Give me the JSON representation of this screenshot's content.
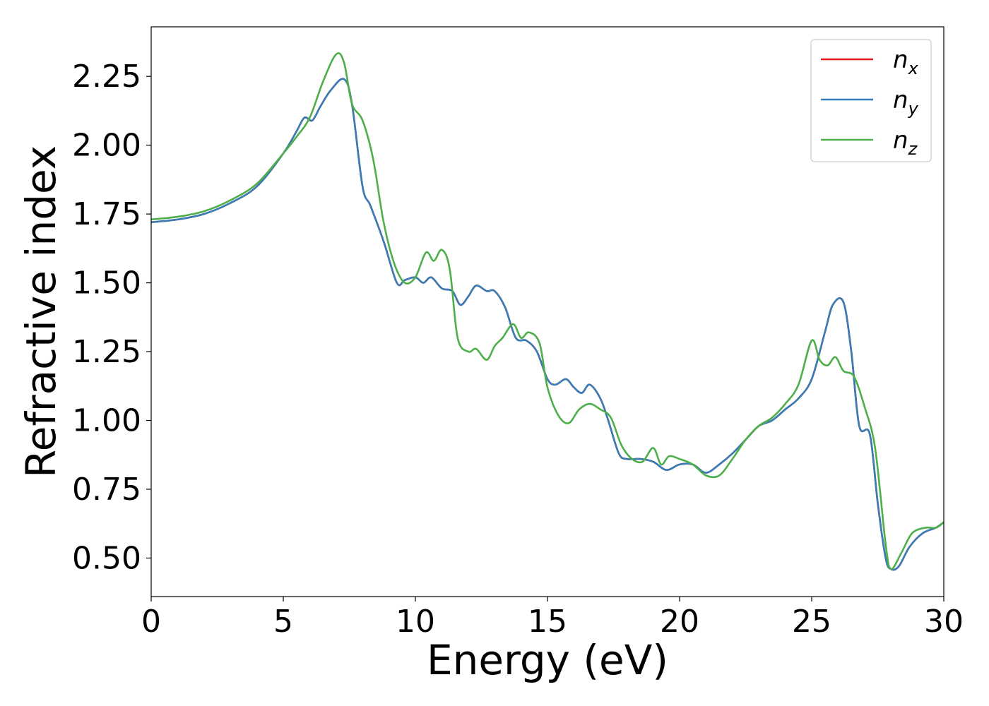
{
  "chart_data": {
    "type": "line",
    "title": "",
    "xlabel": "Energy (eV)",
    "ylabel": "Refractive index",
    "xlim": [
      0,
      30
    ],
    "ylim": [
      0.36,
      2.43
    ],
    "grid": false,
    "legend_position": "top-right",
    "x_ticks": [
      0,
      5,
      10,
      15,
      20,
      25,
      30
    ],
    "x_tick_labels": [
      "0",
      "5",
      "10",
      "15",
      "20",
      "25",
      "30"
    ],
    "y_ticks": [
      0.5,
      0.75,
      1.0,
      1.25,
      1.5,
      1.75,
      2.0,
      2.25
    ],
    "y_tick_labels": [
      "0.50",
      "0.75",
      "1.00",
      "1.25",
      "1.50",
      "1.75",
      "2.00",
      "2.25"
    ],
    "series": [
      {
        "name": "n",
        "subscript": "x",
        "color": "#e41a1c",
        "x": [
          0,
          1,
          2,
          3,
          4,
          5,
          5.5,
          5.8,
          6.1,
          6.4,
          6.8,
          7.3,
          7.6,
          8.0,
          8.3,
          8.8,
          9.3,
          9.6,
          10.0,
          10.3,
          10.6,
          11.0,
          11.4,
          11.7,
          12.0,
          12.3,
          12.7,
          13.0,
          13.4,
          13.8,
          14.2,
          14.6,
          15.0,
          15.3,
          15.7,
          16.0,
          16.3,
          16.6,
          17.0,
          17.3,
          17.7,
          18.0,
          18.5,
          19.0,
          19.5,
          20.0,
          20.5,
          21.0,
          21.5,
          22.0,
          22.5,
          23.0,
          23.5,
          24.0,
          24.5,
          25.0,
          25.5,
          25.8,
          26.2,
          26.5,
          26.8,
          27.2,
          27.5,
          27.8,
          28.0,
          28.3,
          28.7,
          29.2,
          29.7,
          30.0
        ],
        "values": [
          1.72,
          1.73,
          1.75,
          1.79,
          1.85,
          1.97,
          2.05,
          2.1,
          2.09,
          2.14,
          2.2,
          2.24,
          2.15,
          1.85,
          1.78,
          1.65,
          1.5,
          1.51,
          1.52,
          1.5,
          1.52,
          1.48,
          1.47,
          1.42,
          1.45,
          1.49,
          1.47,
          1.47,
          1.41,
          1.3,
          1.29,
          1.25,
          1.15,
          1.13,
          1.15,
          1.12,
          1.1,
          1.13,
          1.08,
          1.0,
          0.88,
          0.86,
          0.86,
          0.85,
          0.82,
          0.84,
          0.84,
          0.81,
          0.84,
          0.88,
          0.93,
          0.98,
          1.0,
          1.04,
          1.08,
          1.15,
          1.32,
          1.42,
          1.43,
          1.25,
          0.98,
          0.95,
          0.7,
          0.5,
          0.46,
          0.47,
          0.54,
          0.59,
          0.61,
          0.63
        ]
      },
      {
        "name": "n",
        "subscript": "y",
        "color": "#377eb8",
        "x": [
          0,
          1,
          2,
          3,
          4,
          5,
          5.5,
          5.8,
          6.1,
          6.4,
          6.8,
          7.3,
          7.6,
          8.0,
          8.3,
          8.8,
          9.3,
          9.6,
          10.0,
          10.3,
          10.6,
          11.0,
          11.4,
          11.7,
          12.0,
          12.3,
          12.7,
          13.0,
          13.4,
          13.8,
          14.2,
          14.6,
          15.0,
          15.3,
          15.7,
          16.0,
          16.3,
          16.6,
          17.0,
          17.3,
          17.7,
          18.0,
          18.5,
          19.0,
          19.5,
          20.0,
          20.5,
          21.0,
          21.5,
          22.0,
          22.5,
          23.0,
          23.5,
          24.0,
          24.5,
          25.0,
          25.5,
          25.8,
          26.2,
          26.5,
          26.8,
          27.2,
          27.5,
          27.8,
          28.0,
          28.3,
          28.7,
          29.2,
          29.7,
          30.0
        ],
        "values": [
          1.72,
          1.73,
          1.75,
          1.79,
          1.85,
          1.97,
          2.05,
          2.1,
          2.09,
          2.14,
          2.2,
          2.24,
          2.15,
          1.85,
          1.78,
          1.65,
          1.5,
          1.51,
          1.52,
          1.5,
          1.52,
          1.48,
          1.47,
          1.42,
          1.45,
          1.49,
          1.47,
          1.47,
          1.41,
          1.3,
          1.29,
          1.25,
          1.15,
          1.13,
          1.15,
          1.12,
          1.1,
          1.13,
          1.08,
          1.0,
          0.88,
          0.86,
          0.86,
          0.85,
          0.82,
          0.84,
          0.84,
          0.81,
          0.84,
          0.88,
          0.93,
          0.98,
          1.0,
          1.04,
          1.08,
          1.15,
          1.32,
          1.42,
          1.43,
          1.25,
          0.98,
          0.95,
          0.7,
          0.5,
          0.46,
          0.47,
          0.54,
          0.59,
          0.61,
          0.63
        ]
      },
      {
        "name": "n",
        "subscript": "z",
        "color": "#4daf4a",
        "x": [
          0,
          1,
          2,
          3,
          4,
          5,
          5.5,
          6.0,
          6.5,
          7.0,
          7.3,
          7.6,
          8.0,
          8.4,
          8.8,
          9.2,
          9.6,
          10.0,
          10.4,
          10.7,
          11.0,
          11.3,
          11.6,
          12.0,
          12.3,
          12.7,
          13.0,
          13.3,
          13.7,
          14.0,
          14.3,
          14.7,
          15.0,
          15.4,
          15.8,
          16.2,
          16.6,
          17.0,
          17.4,
          17.8,
          18.2,
          18.6,
          19.0,
          19.3,
          19.6,
          20.0,
          20.5,
          21.0,
          21.5,
          22.0,
          22.5,
          23.0,
          23.5,
          24.0,
          24.5,
          25.0,
          25.3,
          25.6,
          25.9,
          26.2,
          26.6,
          27.0,
          27.4,
          27.8,
          28.0,
          28.4,
          28.8,
          29.3,
          29.7,
          30.0
        ],
        "values": [
          1.73,
          1.74,
          1.76,
          1.8,
          1.86,
          1.97,
          2.03,
          2.1,
          2.23,
          2.33,
          2.3,
          2.15,
          2.09,
          1.95,
          1.72,
          1.57,
          1.5,
          1.52,
          1.61,
          1.58,
          1.62,
          1.55,
          1.3,
          1.25,
          1.26,
          1.22,
          1.27,
          1.3,
          1.35,
          1.3,
          1.32,
          1.28,
          1.12,
          1.02,
          0.99,
          1.04,
          1.06,
          1.04,
          1.01,
          0.91,
          0.86,
          0.85,
          0.9,
          0.84,
          0.87,
          0.86,
          0.84,
          0.8,
          0.8,
          0.86,
          0.93,
          0.98,
          1.01,
          1.06,
          1.13,
          1.29,
          1.22,
          1.2,
          1.23,
          1.18,
          1.16,
          1.05,
          0.9,
          0.55,
          0.46,
          0.52,
          0.59,
          0.61,
          0.61,
          0.63
        ]
      }
    ]
  }
}
